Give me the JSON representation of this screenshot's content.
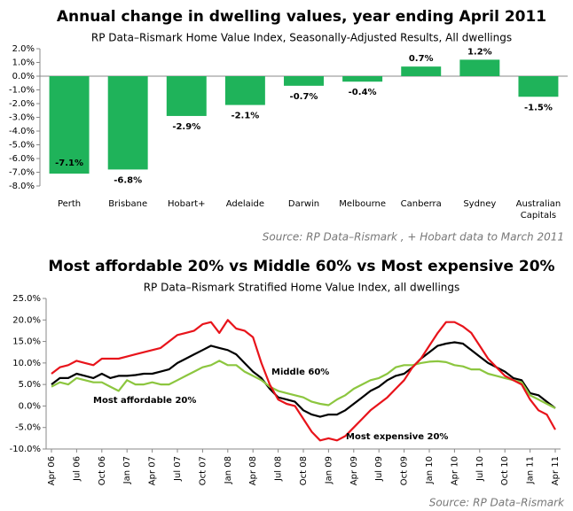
{
  "chart_data": [
    {
      "type": "bar",
      "title": "Annual change in dwelling values, year ending April 2011",
      "subtitle": "RP Data–Rismark Home Value Index, Seasonally-Adjusted Results, All dwellings",
      "source": "Source: RP Data–Rismark , + Hobart data to March 2011",
      "categories": [
        "Perth",
        "Brisbane",
        "Hobart+",
        "Adelaide",
        "Darwin",
        "Melbourne",
        "Canberra",
        "Sydney",
        "Australian Capitals"
      ],
      "values": [
        -7.1,
        -6.8,
        -2.9,
        -2.1,
        -0.7,
        -0.4,
        0.7,
        1.2,
        -1.5
      ],
      "value_labels": [
        "-7.1%",
        "-6.8%",
        "-2.9%",
        "-2.1%",
        "-0.7%",
        "-0.4%",
        "0.7%",
        "1.2%",
        "-1.5%"
      ],
      "color": "#1fb35a",
      "ylim": [
        -8,
        2
      ],
      "yticks": [
        {
          "value": 2,
          "label": "2.0%"
        },
        {
          "value": 1,
          "label": "1.0%"
        },
        {
          "value": 0,
          "label": "0.0%"
        },
        {
          "value": -1,
          "label": "-1.0%"
        },
        {
          "value": -2,
          "label": "-2.0%"
        },
        {
          "value": -3,
          "label": "-3.0%"
        },
        {
          "value": -4,
          "label": "-4.0%"
        },
        {
          "value": -5,
          "label": "-5.0%"
        },
        {
          "value": -6,
          "label": "-6.0%"
        },
        {
          "value": -7,
          "label": "-7.0%"
        },
        {
          "value": -8,
          "label": "-8.0%"
        }
      ],
      "grid": false
    },
    {
      "type": "line",
      "title": "Most affordable 20% vs Middle 60% vs Most expensive 20%",
      "subtitle": "RP Data–Rismark Stratified Home Value Index, all dwellings",
      "source": "Source: RP Data–Rismark",
      "categories": [
        "Apr 06",
        null,
        null,
        "Jul 06",
        null,
        null,
        "Oct 06",
        null,
        null,
        "Jan 07",
        null,
        null,
        "Apr 07",
        null,
        null,
        "Jul 07",
        null,
        null,
        "Oct 07",
        null,
        null,
        "Jan 08",
        null,
        null,
        "Apr 08",
        null,
        null,
        "Jul 08",
        null,
        null,
        "Oct 08",
        null,
        null,
        "Jan 09",
        null,
        null,
        "Apr 09",
        null,
        null,
        "Jul 09",
        null,
        null,
        "Oct 09",
        null,
        null,
        "Jan 10",
        null,
        null,
        "Apr 10",
        null,
        null,
        "Jul 10",
        null,
        null,
        "Oct 10",
        null,
        null,
        "Jan 11",
        null,
        null,
        "Apr 11"
      ],
      "series": [
        {
          "name": "Middle 60%",
          "color": "#000000",
          "values": [
            5,
            6.5,
            6.5,
            7.5,
            7,
            6.5,
            7.5,
            6.5,
            7,
            7,
            7.2,
            7.5,
            7.5,
            8,
            8.5,
            10,
            11,
            12,
            13,
            14,
            13.5,
            13,
            12,
            10,
            8,
            6.5,
            4,
            2,
            1.5,
            1,
            -1,
            -2,
            -2.5,
            -2,
            -2,
            -1,
            0.5,
            2,
            3.5,
            4.5,
            6,
            7,
            7.5,
            9,
            11,
            12.5,
            14,
            14.5,
            14.8,
            14.5,
            13,
            11.5,
            10,
            9,
            8,
            6.5,
            6,
            3,
            2.5,
            1,
            -0.5
          ]
        },
        {
          "name": "Most affordable 20%",
          "color": "#8cc63f",
          "values": [
            4.5,
            5.5,
            5,
            6.5,
            6,
            5.5,
            5.5,
            4.5,
            3.5,
            6,
            5,
            5,
            5.5,
            5,
            5,
            6,
            7,
            8,
            9,
            9.5,
            10.5,
            9.5,
            9.5,
            8,
            7,
            6,
            4.5,
            3.5,
            3,
            2.5,
            2,
            1,
            0.5,
            0.2,
            1.5,
            2.5,
            4,
            5,
            6,
            6.5,
            7.5,
            9,
            9.5,
            9.5,
            10,
            10.3,
            10.4,
            10.2,
            9.5,
            9.2,
            8.5,
            8.5,
            7.5,
            7,
            6.5,
            6,
            5.5,
            2.5,
            1.5,
            0.5,
            -0.5
          ]
        },
        {
          "name": "Most expensive 20%",
          "color": "#e8141b",
          "values": [
            7.5,
            9,
            9.5,
            10.5,
            10,
            9.5,
            11,
            11,
            11,
            11.5,
            12,
            12.5,
            13,
            13.5,
            15,
            16.5,
            17,
            17.5,
            19,
            19.5,
            17,
            20,
            18,
            17.5,
            16,
            10,
            5,
            1.5,
            0.5,
            0,
            -3,
            -6,
            -8,
            -7.5,
            -8,
            -7,
            -5,
            -3,
            -1,
            0.5,
            2,
            4,
            6,
            9,
            11,
            14,
            17,
            19.5,
            19.5,
            18.5,
            17,
            14,
            11,
            9,
            7,
            6,
            5,
            1.5,
            -1,
            -2,
            -5.5
          ]
        }
      ],
      "ylim": [
        -10,
        25
      ],
      "yticks": [
        {
          "value": 25,
          "label": "25.0%"
        },
        {
          "value": 20,
          "label": "20.0%"
        },
        {
          "value": 15,
          "label": "15.0%"
        },
        {
          "value": 10,
          "label": "10.0%"
        },
        {
          "value": 5,
          "label": "5.0%"
        },
        {
          "value": 0,
          "label": "0.0%"
        },
        {
          "value": -5,
          "label": "-5.0%"
        },
        {
          "value": -10,
          "label": "-10.0%"
        }
      ],
      "grid": false
    }
  ]
}
